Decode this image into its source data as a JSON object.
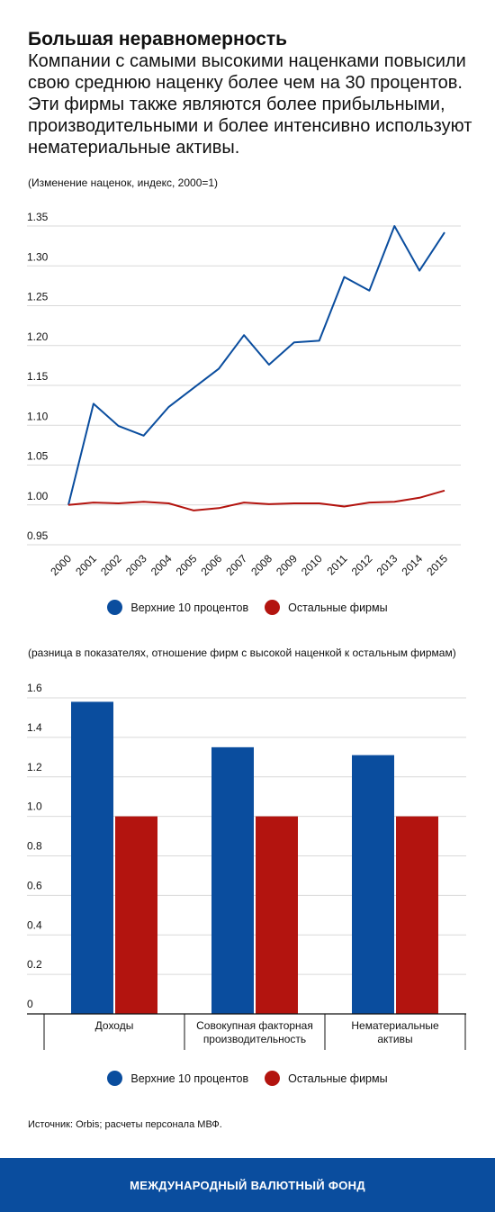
{
  "header": {
    "title": "Большая неравномерность",
    "subtitle": "Компании с самыми высокими наценками повысили свою среднюю наценку более чем на 30 процентов. Эти фирмы также являются более прибыльными, производительными и более интенсивно используют нематериальные активы.",
    "note1": "(Изменение наценок, индекс, 2000=1)",
    "note2": "(разница в показателях, отношение фирм с высокой наценкой к остальным фирмам)"
  },
  "legend": {
    "top": "Верхние 10 процентов",
    "rest": "Остальные фирмы"
  },
  "colors": {
    "top": "#0a4d9e",
    "rest": "#b3140f",
    "grid": "#d9d9d9",
    "footer": "#0a4d9e"
  },
  "source": "Источник: Orbis; расчеты персонала МВФ.",
  "footer": "МЕЖДУНАРОДНЫЙ ВАЛЮТНЫЙ ФОНД",
  "chart_data": [
    {
      "type": "line",
      "x": [
        "2000",
        "2001",
        "2002",
        "2003",
        "2004",
        "2005",
        "2006",
        "2007",
        "2008",
        "2009",
        "2010",
        "2011",
        "2012",
        "2013",
        "2014",
        "2015"
      ],
      "series": [
        {
          "name": "Верхние 10 процентов",
          "color": "#0a4d9e",
          "values": [
            1.0,
            1.127,
            1.099,
            1.087,
            1.123,
            1.147,
            1.171,
            1.213,
            1.176,
            1.204,
            1.206,
            1.286,
            1.269,
            1.35,
            1.294,
            1.342
          ]
        },
        {
          "name": "Остальные фирмы",
          "color": "#b3140f",
          "values": [
            1.0,
            1.003,
            1.002,
            1.004,
            1.002,
            0.993,
            0.996,
            1.003,
            1.001,
            1.002,
            1.002,
            0.998,
            1.003,
            1.004,
            1.009,
            1.018
          ]
        }
      ],
      "yticks": [
        "1.35",
        "1.30",
        "1.25",
        "1.20",
        "1.15",
        "1.10",
        "1.05",
        "1.00",
        "0.95"
      ],
      "ylim": [
        0.95,
        1.35
      ],
      "grid": true,
      "legend": "bottom-center"
    },
    {
      "type": "bar",
      "categories": [
        [
          "Доходы"
        ],
        [
          "Совокупная факторная",
          "производительность"
        ],
        [
          "Нематериальные",
          "активы"
        ]
      ],
      "series": [
        {
          "name": "Верхние 10 процентов",
          "color": "#0a4d9e",
          "values": [
            1.58,
            1.35,
            1.31
          ]
        },
        {
          "name": "Остальные фирмы",
          "color": "#b3140f",
          "values": [
            1.0,
            1.0,
            1.0
          ]
        }
      ],
      "yticks": [
        "1.6",
        "1.4",
        "1.2",
        "1.0",
        "0.8",
        "0.6",
        "0.4",
        "0.2",
        "0"
      ],
      "ylim": [
        0,
        1.6
      ],
      "grid": true,
      "legend": "bottom-center"
    }
  ]
}
